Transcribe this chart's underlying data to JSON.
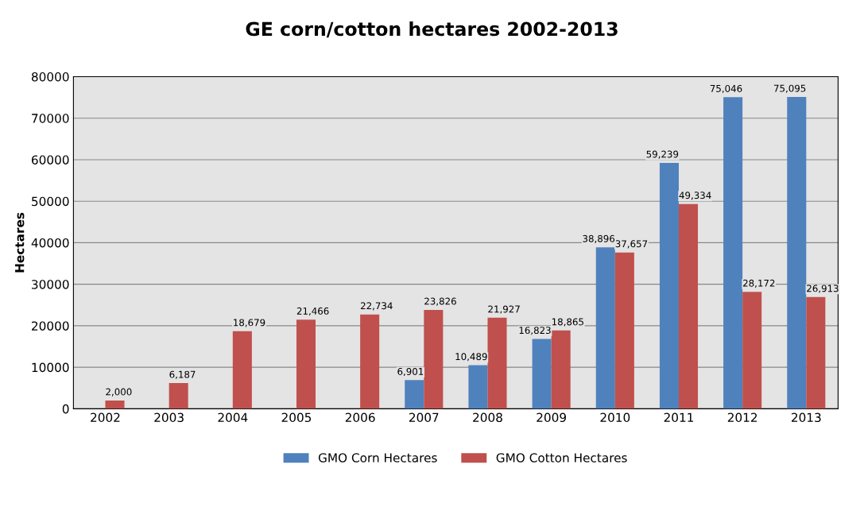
{
  "chart_data": {
    "type": "bar",
    "title": "GE corn/cotton hectares 2002-2013",
    "ylabel": "Hectares",
    "categories": [
      "2002",
      "2003",
      "2004",
      "2005",
      "2006",
      "2007",
      "2008",
      "2009",
      "2010",
      "2011",
      "2012",
      "2013"
    ],
    "series": [
      {
        "name": "GMO Corn Hectares",
        "color": "#4f81bd",
        "values": [
          null,
          null,
          null,
          null,
          null,
          6901,
          10489,
          16823,
          38896,
          59239,
          75046,
          75095
        ],
        "value_labels": [
          null,
          null,
          null,
          null,
          null,
          "6,901",
          "10,489",
          "16,823",
          "38,896",
          "59,239",
          "75,046",
          "75,095"
        ]
      },
      {
        "name": "GMO Cotton Hectares",
        "color": "#c0504d",
        "values": [
          2000,
          6187,
          18679,
          21466,
          22734,
          23826,
          21927,
          18865,
          37657,
          49334,
          28172,
          26913
        ],
        "value_labels": [
          "2,000",
          "6,187",
          "18,679",
          "21,466",
          "22,734",
          "23,826",
          "21,927",
          "18,865",
          "37,657",
          "49,334",
          "28,172",
          "26,913"
        ]
      }
    ],
    "ylim": [
      0,
      80000
    ],
    "yticks": [
      0,
      10000,
      20000,
      30000,
      40000,
      50000,
      60000,
      70000,
      80000
    ],
    "grid": "y",
    "legend": "bottom"
  }
}
